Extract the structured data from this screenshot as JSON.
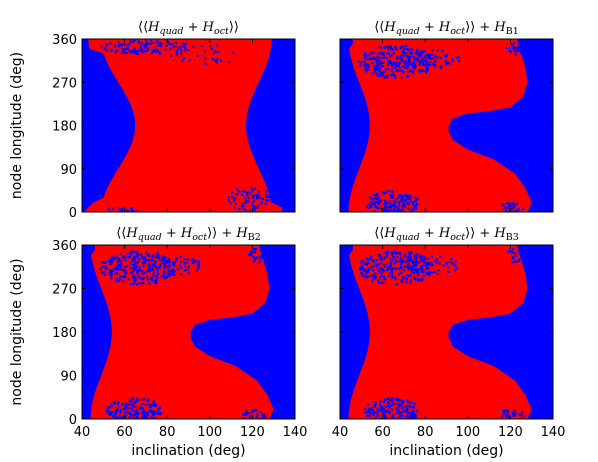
{
  "chart_data": [
    {
      "type": "heatmap",
      "title_parts": [
        {
          "t": "⟨⟨",
          "style": "normal"
        },
        {
          "t": "H",
          "style": "italic"
        },
        {
          "t": "quad",
          "style": "italic-sub"
        },
        {
          "t": " + ",
          "style": "normal"
        },
        {
          "t": "H",
          "style": "italic"
        },
        {
          "t": "oct",
          "style": "italic-sub"
        },
        {
          "t": "⟩⟩",
          "style": "normal"
        }
      ],
      "xlim": [
        40,
        140
      ],
      "ylim": [
        0,
        360
      ],
      "variant": "quad_oct",
      "colors": {
        "background": "#0000ff",
        "region": "#ff0000"
      }
    },
    {
      "type": "heatmap",
      "title_parts": [
        {
          "t": "⟨⟨",
          "style": "normal"
        },
        {
          "t": "H",
          "style": "italic"
        },
        {
          "t": "quad",
          "style": "italic-sub"
        },
        {
          "t": " + ",
          "style": "normal"
        },
        {
          "t": "H",
          "style": "italic"
        },
        {
          "t": "oct",
          "style": "italic-sub"
        },
        {
          "t": "⟩⟩ + ",
          "style": "normal"
        },
        {
          "t": "H",
          "style": "italic"
        },
        {
          "t": "B1",
          "style": "sub"
        }
      ],
      "xlim": [
        40,
        140
      ],
      "ylim": [
        0,
        360
      ],
      "variant": "with_B",
      "colors": {
        "background": "#0000ff",
        "region": "#ff0000"
      }
    },
    {
      "type": "heatmap",
      "title_parts": [
        {
          "t": "⟨⟨",
          "style": "normal"
        },
        {
          "t": "H",
          "style": "italic"
        },
        {
          "t": "quad",
          "style": "italic-sub"
        },
        {
          "t": " + ",
          "style": "normal"
        },
        {
          "t": "H",
          "style": "italic"
        },
        {
          "t": "oct",
          "style": "italic-sub"
        },
        {
          "t": "⟩⟩ + ",
          "style": "normal"
        },
        {
          "t": "H",
          "style": "italic"
        },
        {
          "t": "B2",
          "style": "sub"
        }
      ],
      "xlim": [
        40,
        140
      ],
      "ylim": [
        0,
        360
      ],
      "variant": "with_B",
      "colors": {
        "background": "#0000ff",
        "region": "#ff0000"
      }
    },
    {
      "type": "heatmap",
      "title_parts": [
        {
          "t": "⟨⟨",
          "style": "normal"
        },
        {
          "t": "H",
          "style": "italic"
        },
        {
          "t": "quad",
          "style": "italic-sub"
        },
        {
          "t": " + ",
          "style": "normal"
        },
        {
          "t": "H",
          "style": "italic"
        },
        {
          "t": "oct",
          "style": "italic-sub"
        },
        {
          "t": "⟩⟩ + ",
          "style": "normal"
        },
        {
          "t": "H",
          "style": "italic"
        },
        {
          "t": "B3",
          "style": "sub"
        }
      ],
      "xlim": [
        40,
        140
      ],
      "ylim": [
        0,
        360
      ],
      "variant": "with_B",
      "colors": {
        "background": "#0000ff",
        "region": "#ff0000"
      }
    }
  ],
  "axes": {
    "ylabel": "node longitude (deg)",
    "xlabel": "inclination (deg)",
    "yticks": [
      0,
      90,
      180,
      270,
      360
    ],
    "xticks": [
      40,
      60,
      80,
      100,
      120,
      140
    ]
  }
}
